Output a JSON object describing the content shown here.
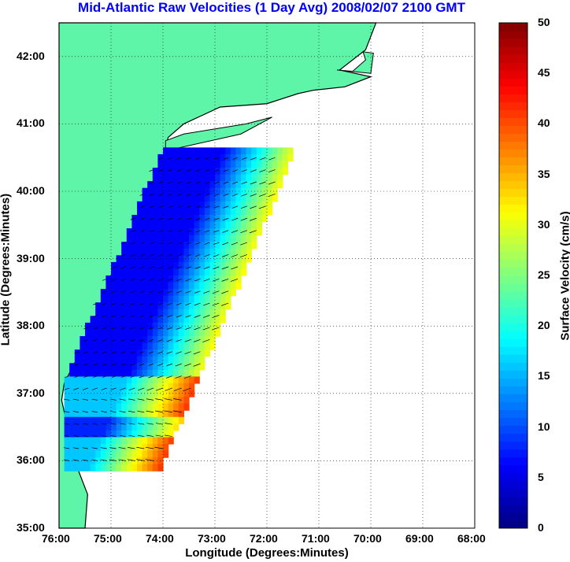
{
  "title": "Mid-Atlantic Raw Velocities (1 Day Avg) 2008/02/07 2100 GMT",
  "x_axis": {
    "label": "Longitude (Degrees:Minutes)",
    "ticks": [
      "76:00",
      "75:00",
      "74:00",
      "73:00",
      "72:00",
      "71:00",
      "70:00",
      "69:00",
      "68:00"
    ]
  },
  "y_axis": {
    "label": "Latitude (Degrees:Minutes)",
    "ticks": [
      "42:00",
      "41:00",
      "40:00",
      "39:00",
      "38:00",
      "37:00",
      "36:00",
      "35:00"
    ]
  },
  "colorbar": {
    "label": "Surface Velocity (cm/s)",
    "ticks": [
      "50",
      "45",
      "40",
      "35",
      "30",
      "25",
      "20",
      "15",
      "10",
      "5",
      "0"
    ],
    "range": [
      0,
      50
    ],
    "colormap": "jet"
  },
  "colors": {
    "title": "#0000ff",
    "land": "#5ff5a8",
    "coast_outline": "#000000",
    "bathymetry": "#a0a0a0",
    "grid": "#000000"
  },
  "chart_data": {
    "type": "heatmap",
    "title": "Mid-Atlantic Raw Velocities (1 Day Avg) 2008/02/07 2100 GMT",
    "xlabel": "Longitude (Degrees:Minutes)",
    "ylabel": "Latitude (Degrees:Minutes)",
    "xlim": [
      -76,
      -68
    ],
    "ylim": [
      35,
      42.5
    ],
    "color_range": [
      0,
      50
    ],
    "grid": true
  }
}
